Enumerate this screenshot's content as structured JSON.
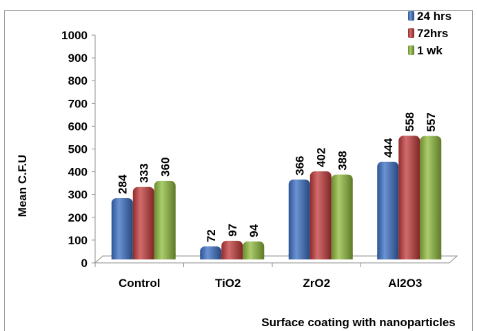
{
  "chart_data": {
    "type": "bar",
    "categories": [
      "Control",
      "TiO2",
      "ZrO2",
      "Al2O3"
    ],
    "series": [
      {
        "name": "24 hrs",
        "values": [
          284,
          72,
          366,
          444
        ],
        "color": "#3a6fc4"
      },
      {
        "name": "72hrs",
        "values": [
          333,
          97,
          402,
          558
        ],
        "color": "#c33b3b"
      },
      {
        "name": "1 wk",
        "values": [
          360,
          94,
          388,
          557
        ],
        "color": "#8fbb3c"
      }
    ],
    "title": "",
    "xlabel": "Surface coating with nanoparticles",
    "ylabel": "Mean C.F.U",
    "ylim": [
      0,
      1000
    ],
    "yticks": [
      "0",
      "100",
      "200",
      "300",
      "400",
      "500",
      "600",
      "700",
      "800",
      "900",
      "1000"
    ],
    "grid": false,
    "legend_position": "top-right"
  }
}
